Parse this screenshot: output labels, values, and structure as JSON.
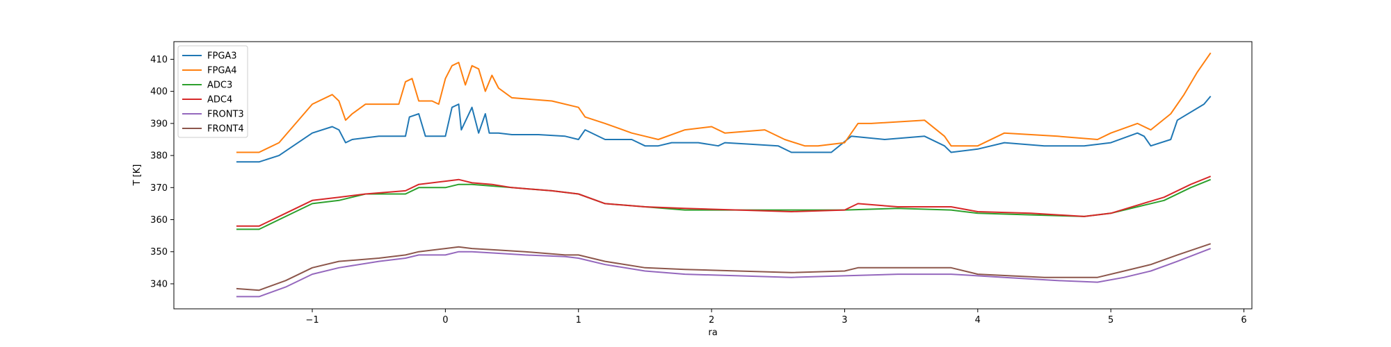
{
  "chart_data": {
    "type": "line",
    "title": "",
    "xlabel": "ra",
    "ylabel": "T [K]",
    "xlim": [
      -2.04,
      6.06
    ],
    "ylim": [
      332.2,
      415.5
    ],
    "xticks": [
      -1,
      0,
      1,
      2,
      3,
      4,
      5,
      6
    ],
    "xtick_labels": [
      "−1",
      "0",
      "1",
      "2",
      "3",
      "4",
      "5",
      "6"
    ],
    "yticks": [
      340,
      350,
      360,
      370,
      380,
      390,
      400,
      410
    ],
    "ytick_labels": [
      "340",
      "350",
      "360",
      "370",
      "380",
      "390",
      "400",
      "410"
    ],
    "grid": false,
    "legend_position": "top-left",
    "series": [
      {
        "name": "FPGA3",
        "color": "#1f77b4",
        "x": [
          -1.57,
          -1.4,
          -1.25,
          -1.0,
          -0.85,
          -0.8,
          -0.75,
          -0.7,
          -0.5,
          -0.3,
          -0.27,
          -0.2,
          -0.15,
          -0.1,
          0.0,
          0.05,
          0.1,
          0.12,
          0.2,
          0.25,
          0.3,
          0.33,
          0.4,
          0.5,
          0.7,
          0.9,
          1.0,
          1.05,
          1.2,
          1.4,
          1.5,
          1.6,
          1.7,
          1.9,
          2.05,
          2.1,
          2.3,
          2.5,
          2.6,
          2.8,
          2.9,
          3.05,
          3.3,
          3.6,
          3.75,
          3.8,
          4.0,
          4.2,
          4.5,
          4.8,
          5.0,
          5.2,
          5.25,
          5.3,
          5.45,
          5.5,
          5.7,
          5.75
        ],
        "values": [
          378,
          378,
          380,
          387,
          389,
          388,
          384,
          385,
          386,
          386,
          392,
          393,
          386,
          386,
          386,
          395,
          396,
          388,
          395,
          387,
          393,
          387,
          387,
          386.5,
          386.5,
          386,
          385,
          388,
          385,
          385,
          383,
          383,
          384,
          384,
          383,
          384,
          383.5,
          383,
          381,
          381,
          381,
          386,
          385,
          386,
          383,
          381,
          382,
          384,
          383,
          383,
          384,
          387,
          386,
          383,
          385,
          391,
          396,
          398.5
        ]
      },
      {
        "name": "FPGA4",
        "color": "#ff7f0e",
        "x": [
          -1.57,
          -1.4,
          -1.25,
          -1.0,
          -0.85,
          -0.8,
          -0.75,
          -0.7,
          -0.6,
          -0.35,
          -0.3,
          -0.25,
          -0.2,
          -0.15,
          -0.1,
          -0.05,
          0.0,
          0.05,
          0.1,
          0.15,
          0.2,
          0.25,
          0.3,
          0.35,
          0.4,
          0.5,
          0.8,
          1.0,
          1.05,
          1.2,
          1.4,
          1.5,
          1.6,
          1.8,
          2.0,
          2.1,
          2.4,
          2.55,
          2.7,
          2.8,
          3.0,
          3.1,
          3.2,
          3.6,
          3.75,
          3.8,
          4.0,
          4.2,
          4.6,
          4.9,
          5.0,
          5.2,
          5.3,
          5.45,
          5.55,
          5.65,
          5.75
        ],
        "values": [
          381,
          381,
          384,
          396,
          399,
          397,
          391,
          393,
          396,
          396,
          403,
          404,
          397,
          397,
          397,
          396,
          404,
          408,
          409,
          402,
          408,
          407,
          400,
          405,
          401,
          398,
          397,
          395,
          392,
          390,
          387,
          386,
          385,
          388,
          389,
          387,
          388,
          385,
          383,
          383,
          384,
          390,
          390,
          391,
          386,
          383,
          383,
          387,
          386,
          385,
          387,
          390,
          388,
          393,
          399,
          406,
          412
        ]
      },
      {
        "name": "ADC3",
        "color": "#2ca02c",
        "x": [
          -1.57,
          -1.4,
          -1.2,
          -1.0,
          -0.8,
          -0.6,
          -0.3,
          -0.2,
          0.0,
          0.1,
          0.2,
          0.35,
          0.5,
          0.8,
          1.0,
          1.2,
          1.5,
          1.8,
          2.2,
          2.6,
          3.0,
          3.4,
          3.8,
          4.0,
          4.4,
          4.8,
          5.0,
          5.2,
          5.4,
          5.6,
          5.75
        ],
        "values": [
          357,
          357,
          361,
          365,
          366,
          368,
          368,
          370,
          370,
          371,
          371,
          370.5,
          370,
          369,
          368,
          365,
          364,
          363,
          363,
          363,
          363,
          363.5,
          363,
          362,
          361.5,
          361,
          362,
          364,
          366,
          370,
          372.5
        ]
      },
      {
        "name": "ADC4",
        "color": "#d62728",
        "x": [
          -1.57,
          -1.4,
          -1.2,
          -1.0,
          -0.8,
          -0.6,
          -0.3,
          -0.2,
          0.0,
          0.1,
          0.2,
          0.35,
          0.5,
          0.8,
          1.0,
          1.2,
          1.5,
          1.8,
          2.2,
          2.6,
          3.0,
          3.1,
          3.4,
          3.8,
          4.0,
          4.4,
          4.8,
          5.0,
          5.2,
          5.4,
          5.6,
          5.75
        ],
        "values": [
          358,
          358,
          362,
          366,
          367,
          368,
          369,
          371,
          372,
          372.5,
          371.5,
          371,
          370,
          369,
          368,
          365,
          364,
          363.5,
          363,
          362.5,
          363,
          365,
          364,
          364,
          362.5,
          362,
          361,
          362,
          364.5,
          367,
          371,
          373.5
        ]
      },
      {
        "name": "FRONT3",
        "color": "#9467bd",
        "x": [
          -1.57,
          -1.4,
          -1.2,
          -1.0,
          -0.8,
          -0.5,
          -0.3,
          -0.2,
          0.0,
          0.1,
          0.2,
          0.4,
          0.6,
          0.9,
          1.0,
          1.2,
          1.5,
          1.8,
          2.2,
          2.6,
          3.0,
          3.4,
          3.8,
          4.2,
          4.6,
          4.9,
          5.1,
          5.3,
          5.5,
          5.75
        ],
        "values": [
          336,
          336,
          339,
          343,
          345,
          347,
          348,
          349,
          349,
          350,
          350,
          349.5,
          349,
          348.5,
          348,
          346,
          344,
          343,
          342.5,
          342,
          342.5,
          343,
          343,
          342,
          341,
          340.5,
          342,
          344,
          347,
          351
        ]
      },
      {
        "name": "FRONT4",
        "color": "#8c564b",
        "x": [
          -1.57,
          -1.4,
          -1.2,
          -1.0,
          -0.8,
          -0.5,
          -0.3,
          -0.2,
          0.0,
          0.1,
          0.2,
          0.4,
          0.6,
          0.9,
          1.0,
          1.2,
          1.5,
          1.8,
          2.2,
          2.6,
          3.0,
          3.1,
          3.4,
          3.8,
          4.0,
          4.5,
          4.9,
          5.1,
          5.3,
          5.5,
          5.75
        ],
        "values": [
          338.5,
          338,
          341,
          345,
          347,
          348,
          349,
          350,
          351,
          351.5,
          351,
          350.5,
          350,
          349,
          349,
          347,
          345,
          344.5,
          344,
          343.5,
          344,
          345,
          345,
          345,
          343,
          342,
          342,
          344,
          346,
          349,
          352.5
        ]
      }
    ]
  }
}
